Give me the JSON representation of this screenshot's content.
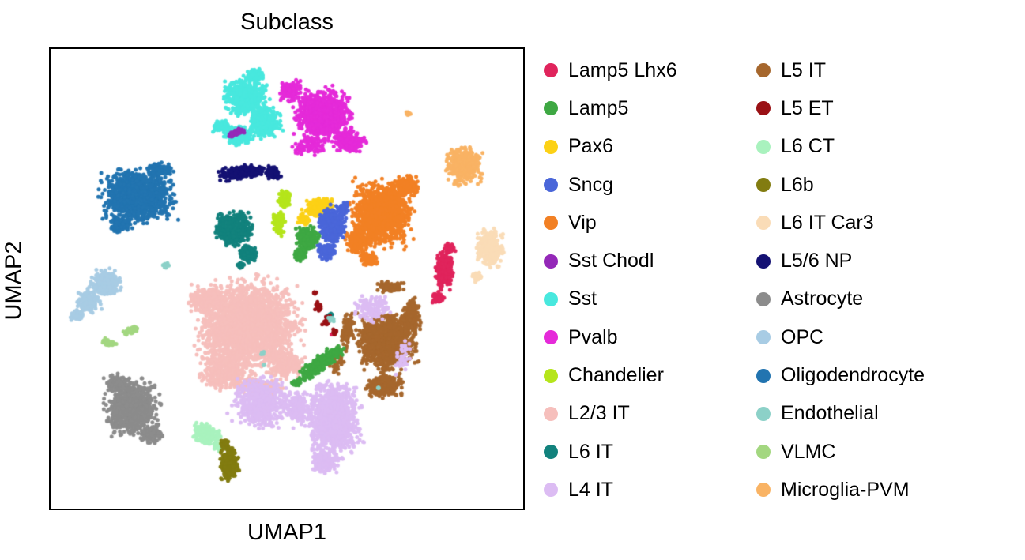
{
  "figure": {
    "title": "Subclass",
    "xlabel": "UMAP1",
    "ylabel": "UMAP2",
    "background": "#ffffff",
    "plot_border_color": "#000000"
  },
  "chart_data": {
    "type": "scatter",
    "title": "Subclass",
    "xlabel": "UMAP1",
    "ylabel": "UMAP2",
    "axes_note": "UMAP embedding; axes have no ticks or numeric labels. Cluster geometry is given in plot-box pixel units (origin = top-left of the 600x584 plot box).",
    "blob_format": [
      "cx",
      "cy",
      "rx",
      "ry",
      "n_points",
      "rotation_deg"
    ],
    "legend": {
      "position": "right-of-plot",
      "columns": 2,
      "column1": [
        "Lamp5 Lhx6",
        "Lamp5",
        "Pax6",
        "Sncg",
        "Vip",
        "Sst Chodl",
        "Sst",
        "Pvalb",
        "Chandelier",
        "L2/3 IT",
        "L6 IT",
        "L4 IT"
      ],
      "column2": [
        "L5 IT",
        "L5 ET",
        "L6 CT",
        "L6b",
        "L6 IT Car3",
        "L5/6 NP",
        "Astrocyte",
        "OPC",
        "Oligodendrocyte",
        "Endothelial",
        "VLMC",
        "Microglia-PVM"
      ]
    },
    "draw_order": [
      "Oligodendrocyte",
      "OPC",
      "VLMC",
      "Astrocyte",
      "L2/3 IT",
      "Vip",
      "Pvalb",
      "Sst",
      "Sst Chodl",
      "L5/6 NP",
      "Pax6",
      "Sncg",
      "Chandelier",
      "L6 IT",
      "Microglia-PVM",
      "L6 IT Car3",
      "Lamp5 Lhx6",
      "L5 IT",
      "L4 IT",
      "Lamp5",
      "L6 CT",
      "L6b",
      "L5 ET",
      "Endothelial"
    ],
    "series": [
      {
        "name": "Lamp5 Lhx6",
        "color": "#E0245C",
        "blobs": [
          [
            500,
            282,
            14,
            30,
            300,
            0
          ],
          [
            492,
            318,
            9,
            10,
            70,
            0
          ],
          [
            507,
            255,
            10,
            8,
            50,
            0
          ],
          [
            359,
            364,
            2,
            2,
            2,
            0
          ]
        ]
      },
      {
        "name": "Lamp5",
        "color": "#3EA843",
        "blobs": [
          [
            327,
            242,
            18,
            18,
            240,
            0
          ],
          [
            318,
            262,
            10,
            10,
            70,
            0
          ],
          [
            345,
            399,
            40,
            11,
            330,
            -38
          ],
          [
            312,
            425,
            8,
            6,
            40,
            -30
          ]
        ]
      },
      {
        "name": "Pax6",
        "color": "#FCD116",
        "blobs": [
          [
            340,
            203,
            25,
            14,
            230,
            -10
          ],
          [
            323,
            218,
            10,
            8,
            50,
            0
          ],
          [
            355,
            220,
            8,
            7,
            35,
            0
          ]
        ]
      },
      {
        "name": "Sncg",
        "color": "#4A66D9",
        "blobs": [
          [
            358,
            225,
            22,
            28,
            420,
            0
          ],
          [
            352,
            258,
            14,
            14,
            130,
            0
          ],
          [
            372,
            205,
            10,
            10,
            60,
            0
          ]
        ]
      },
      {
        "name": "Vip",
        "color": "#F28024",
        "blobs": [
          [
            420,
            210,
            48,
            52,
            1250,
            0
          ],
          [
            390,
            245,
            20,
            22,
            220,
            0
          ],
          [
            405,
            268,
            14,
            12,
            100,
            0
          ],
          [
            452,
            175,
            20,
            16,
            150,
            0
          ]
        ]
      },
      {
        "name": "Sst Chodl",
        "color": "#9428B8",
        "blobs": [
          [
            240,
            107,
            14,
            5,
            60,
            -12
          ],
          [
            230,
            112,
            5,
            4,
            15,
            0
          ]
        ]
      },
      {
        "name": "Sst",
        "color": "#48E8DE",
        "blobs": [
          [
            248,
            62,
            34,
            28,
            520,
            0
          ],
          [
            272,
            95,
            26,
            24,
            380,
            0
          ],
          [
            240,
            112,
            22,
            14,
            220,
            0
          ],
          [
            218,
            100,
            14,
            8,
            90,
            0
          ],
          [
            262,
            35,
            14,
            10,
            110,
            0
          ]
        ]
      },
      {
        "name": "Pvalb",
        "color": "#E52AD9",
        "blobs": [
          [
            347,
            85,
            44,
            40,
            950,
            0
          ],
          [
            305,
            55,
            17,
            16,
            160,
            0
          ],
          [
            380,
            120,
            25,
            16,
            220,
            0
          ],
          [
            330,
            125,
            30,
            14,
            90,
            0
          ]
        ]
      },
      {
        "name": "Chandelier",
        "color": "#B5E51B",
        "blobs": [
          [
            298,
            193,
            10,
            14,
            110,
            0
          ],
          [
            291,
            222,
            9,
            18,
            130,
            0
          ]
        ]
      },
      {
        "name": "L2/3 IT",
        "color": "#F6BFBC",
        "blobs": [
          [
            252,
            352,
            80,
            68,
            2500,
            0
          ],
          [
            225,
            410,
            42,
            30,
            450,
            0
          ],
          [
            300,
            400,
            28,
            22,
            250,
            0
          ],
          [
            200,
            320,
            30,
            22,
            250,
            0
          ],
          [
            265,
            430,
            40,
            16,
            120,
            0
          ]
        ]
      },
      {
        "name": "L6 IT",
        "color": "#12827D",
        "blobs": [
          [
            233,
            230,
            28,
            26,
            520,
            0
          ],
          [
            252,
            260,
            14,
            14,
            140,
            0
          ],
          [
            243,
            276,
            6,
            6,
            30,
            0
          ],
          [
            355,
            340,
            6,
            7,
            8,
            0
          ]
        ]
      },
      {
        "name": "L4 IT",
        "color": "#DCBCF3",
        "blobs": [
          [
            360,
            470,
            42,
            55,
            1200,
            0
          ],
          [
            348,
            525,
            20,
            18,
            200,
            0
          ],
          [
            268,
            450,
            44,
            42,
            550,
            0
          ],
          [
            315,
            455,
            20,
            30,
            150,
            0
          ],
          [
            408,
            330,
            32,
            20,
            130,
            0
          ],
          [
            448,
            395,
            15,
            25,
            40,
            0
          ]
        ]
      },
      {
        "name": "L5 IT",
        "color": "#A6672D",
        "blobs": [
          [
            428,
            372,
            44,
            44,
            1500,
            0
          ],
          [
            432,
            303,
            22,
            8,
            120,
            0
          ],
          [
            458,
            340,
            14,
            30,
            200,
            0
          ],
          [
            424,
            428,
            28,
            18,
            330,
            0
          ],
          [
            378,
            360,
            10,
            28,
            90,
            10
          ],
          [
            365,
            395,
            12,
            25,
            45,
            0
          ]
        ]
      },
      {
        "name": "L5 ET",
        "color": "#9A1115",
        "blobs": [
          [
            341,
            328,
            5,
            8,
            25,
            20
          ],
          [
            352,
            347,
            5,
            9,
            28,
            25
          ],
          [
            361,
            360,
            4,
            5,
            12,
            0
          ],
          [
            336,
            310,
            3,
            3,
            5,
            0
          ]
        ]
      },
      {
        "name": "L6 CT",
        "color": "#A9F2BE",
        "blobs": [
          [
            198,
            490,
            21,
            15,
            230,
            28
          ],
          [
            215,
            505,
            8,
            8,
            50,
            0
          ]
        ]
      },
      {
        "name": "L6b",
        "color": "#827C10",
        "blobs": [
          [
            228,
            528,
            14,
            26,
            300,
            0
          ],
          [
            222,
            502,
            7,
            7,
            40,
            0
          ]
        ]
      },
      {
        "name": "L6 IT Car3",
        "color": "#FADCB7",
        "blobs": [
          [
            558,
            255,
            22,
            28,
            330,
            0
          ],
          [
            542,
            290,
            9,
            9,
            40,
            0
          ]
        ]
      },
      {
        "name": "L5/6 NP",
        "color": "#141173",
        "blobs": [
          [
            245,
            158,
            38,
            10,
            260,
            -7
          ],
          [
            283,
            158,
            13,
            11,
            90,
            0
          ]
        ]
      },
      {
        "name": "Astrocyte",
        "color": "#8C8C8C",
        "blobs": [
          [
            106,
            455,
            40,
            44,
            900,
            0
          ],
          [
            130,
            490,
            18,
            14,
            130,
            0
          ],
          [
            85,
            425,
            18,
            14,
            120,
            0
          ]
        ]
      },
      {
        "name": "OPC",
        "color": "#A8CCE4",
        "blobs": [
          [
            72,
            298,
            24,
            20,
            300,
            0
          ],
          [
            50,
            322,
            18,
            16,
            180,
            0
          ],
          [
            35,
            340,
            10,
            10,
            60,
            0
          ]
        ]
      },
      {
        "name": "Oligodendrocyte",
        "color": "#2274B0",
        "blobs": [
          [
            112,
            188,
            54,
            42,
            1250,
            0
          ],
          [
            90,
            225,
            18,
            12,
            120,
            0
          ],
          [
            140,
            155,
            20,
            12,
            110,
            0
          ]
        ]
      },
      {
        "name": "Endothelial",
        "color": "#8CD1C8",
        "blobs": [
          [
            149,
            276,
            6,
            6,
            14,
            0
          ],
          [
            358,
            344,
            6,
            7,
            10,
            0
          ],
          [
            270,
            386,
            4,
            4,
            5,
            0
          ],
          [
            272,
            402,
            3,
            3,
            3,
            0
          ],
          [
            417,
            431,
            3,
            3,
            3,
            0
          ]
        ]
      },
      {
        "name": "VLMC",
        "color": "#A3D780",
        "blobs": [
          [
            77,
            374,
            13,
            5,
            55,
            18
          ],
          [
            103,
            358,
            13,
            5,
            55,
            -22
          ]
        ]
      },
      {
        "name": "Microglia-PVM",
        "color": "#F9B364",
        "blobs": [
          [
            525,
            149,
            27,
            29,
            420,
            0
          ],
          [
            454,
            84,
            6,
            3,
            10,
            0
          ]
        ]
      }
    ]
  }
}
